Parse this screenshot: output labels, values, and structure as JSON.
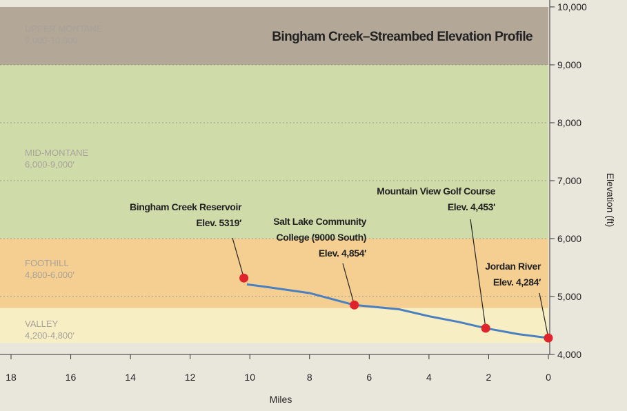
{
  "chart_data": {
    "type": "line",
    "title": "Bingham Creek–Streambed Elevation Profile",
    "x_label": "Miles",
    "y_label": "Elevation (ft)",
    "xlim": [
      18,
      0
    ],
    "xticks": [
      18,
      16,
      14,
      12,
      10,
      8,
      6,
      4,
      2,
      0
    ],
    "ylim": [
      4000,
      10000
    ],
    "yticks": [
      {
        "value": 4000,
        "label": "4,000"
      },
      {
        "value": 5000,
        "label": "5,000"
      },
      {
        "value": 6000,
        "label": "6,000"
      },
      {
        "value": 7000,
        "label": "7,000"
      },
      {
        "value": 8000,
        "label": "8,000"
      },
      {
        "value": 9000,
        "label": "9,000"
      },
      {
        "value": 10000,
        "label": "10,000"
      }
    ],
    "grid": true,
    "zones": [
      {
        "name": "UPPER MONTANE",
        "range": "9,000-10,000′",
        "from": 9000,
        "to": 10000,
        "color": "#b3a797"
      },
      {
        "name": "MID-MONTANE",
        "range": "6,000-9,000′",
        "from": 6000,
        "to": 9000,
        "color": "#cfdca9"
      },
      {
        "name": "FOOTHILL",
        "range": "4,800-6,000′",
        "from": 4800,
        "to": 6000,
        "color": "#f5cf91"
      },
      {
        "name": "VALLEY",
        "range": "4,200-4,800′",
        "from": 4200,
        "to": 4800,
        "color": "#f7eec4"
      }
    ],
    "line": {
      "color": "#4a7fc0",
      "x": [
        10.1,
        9.5,
        8,
        6.5,
        5,
        4,
        3,
        2.1,
        1,
        0
      ],
      "values": [
        5210,
        5170,
        5060,
        4854,
        4780,
        4660,
        4560,
        4453,
        4350,
        4284
      ]
    },
    "points": {
      "color": "#e0242b",
      "x": [
        10.2,
        6.5,
        2.1,
        0
      ],
      "values": [
        5319,
        4854,
        4453,
        4284
      ],
      "labels": [
        [
          "Bingham Creek Reservoir",
          "Elev. 5319′"
        ],
        [
          "Salt Lake Community",
          "College (9000 South)",
          "Elev. 4,854′"
        ],
        [
          "Mountain View Golf Course",
          "Elev. 4,453′"
        ],
        [
          "Jordan River",
          "Elev. 4,284′"
        ]
      ]
    }
  }
}
